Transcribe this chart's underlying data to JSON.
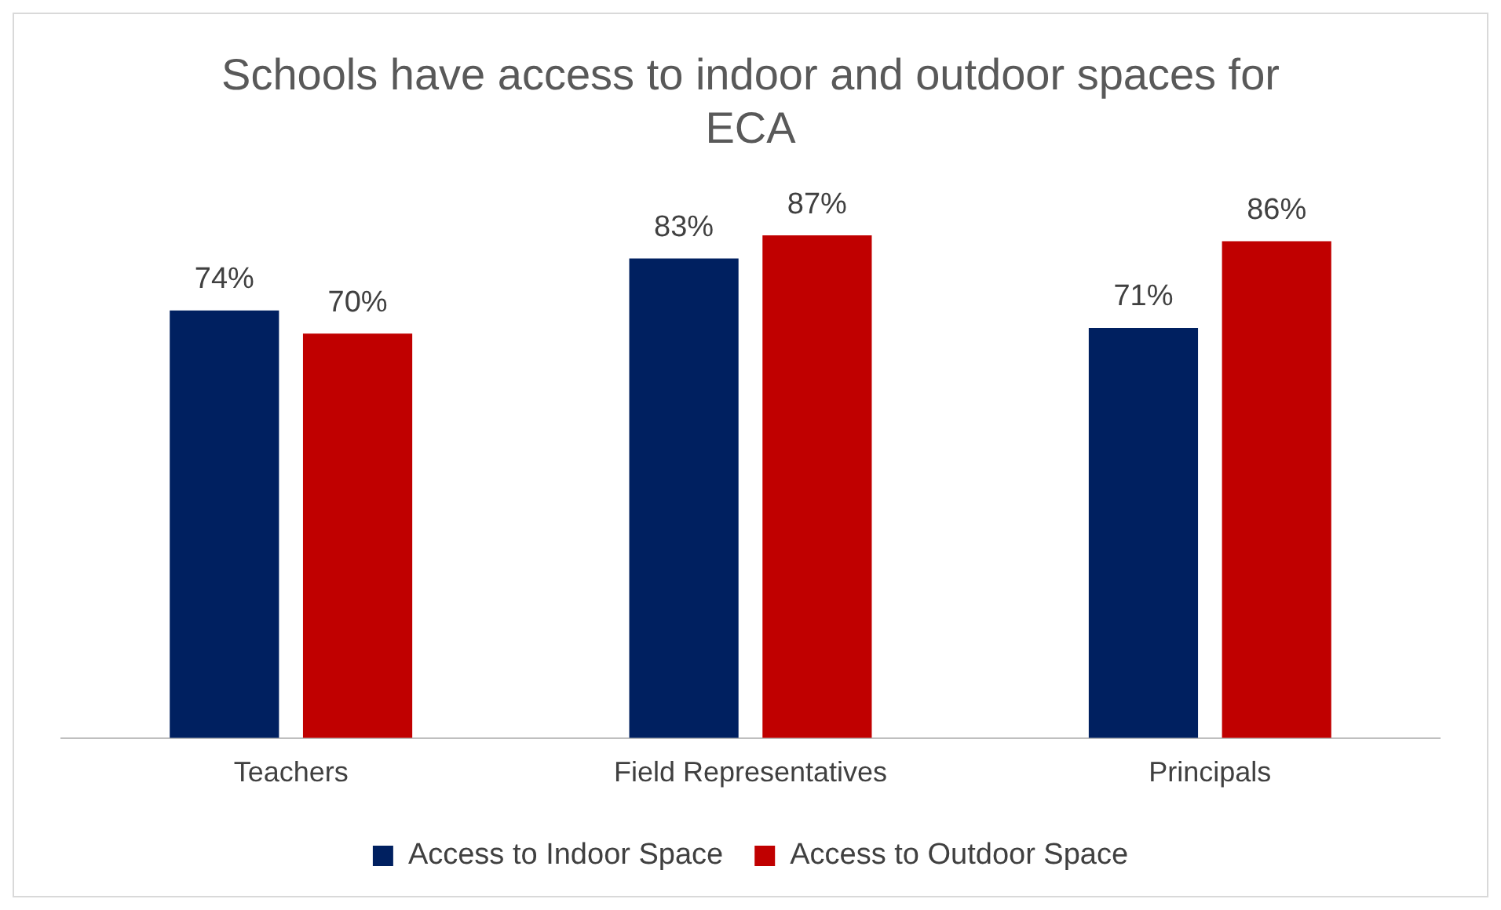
{
  "chart_data": {
    "type": "bar",
    "title": "Schools have access to indoor and outdoor spaces for ECA",
    "categories": [
      "Teachers",
      "Field Representatives",
      "Principals"
    ],
    "legend": "bottom",
    "grid": false,
    "series": [
      {
        "name": "Access to Indoor Space",
        "color": "#002060",
        "values": [
          74,
          83,
          71
        ],
        "value_labels": [
          "74%",
          "83%",
          "71%"
        ]
      },
      {
        "name": "Access to Outdoor Space",
        "color": "#c00000",
        "values": [
          70,
          87,
          86
        ],
        "value_labels": [
          "70%",
          "87%",
          "86%"
        ]
      }
    ]
  }
}
